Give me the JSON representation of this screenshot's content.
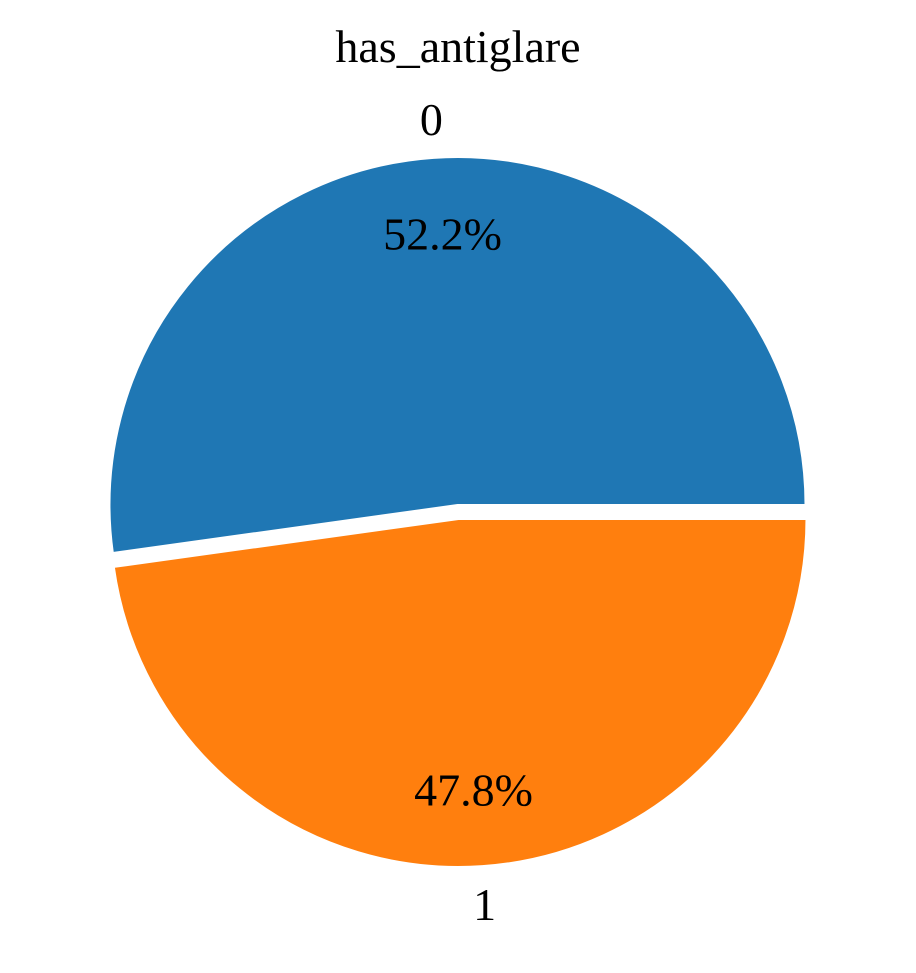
{
  "chart_data": {
    "type": "pie",
    "title": "has_antiglare",
    "categories": [
      "0",
      "1"
    ],
    "values": [
      52.2,
      47.8
    ],
    "percent_labels": [
      "52.2%",
      "47.8%"
    ],
    "colors": [
      "#1f77b4",
      "#ff7f0e"
    ],
    "start_angle_deg": 0,
    "direction": "clockwise",
    "exploded": true
  }
}
